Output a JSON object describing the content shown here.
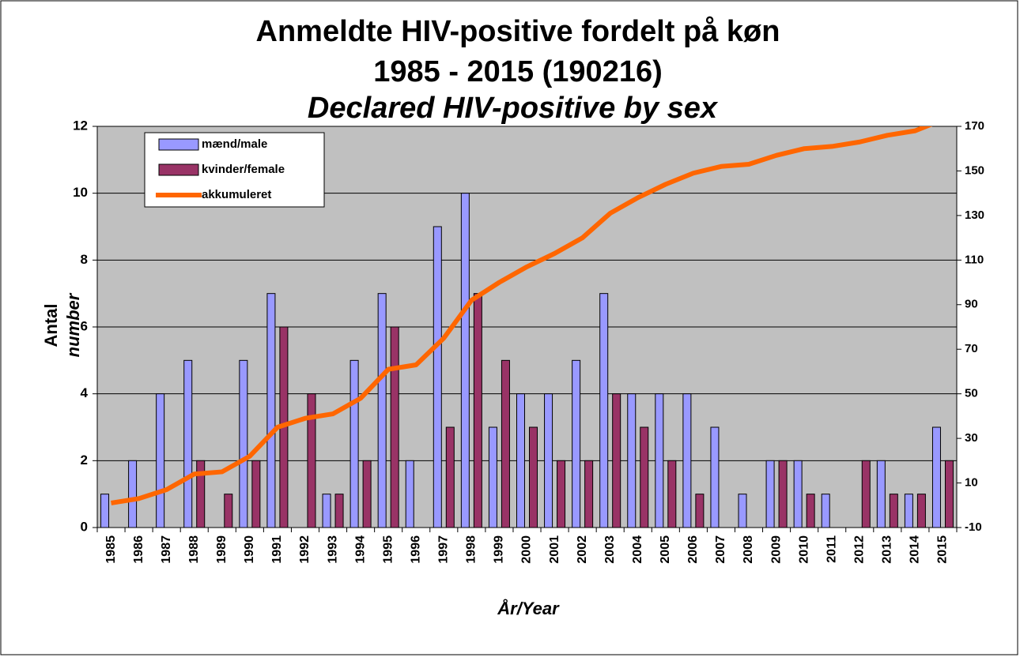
{
  "chart_data": {
    "type": "bar",
    "title": "Anmeldte HIV-positive fordelt på køn",
    "subtitle": "1985 - 2015 (190216)",
    "title_en": "Declared HIV-positive by sex",
    "y_label": "Antal",
    "y_label_en": "number",
    "x_label": "År/Year",
    "categories": [
      "1985",
      "1986",
      "1987",
      "1988",
      "1989",
      "1990",
      "1991",
      "1992",
      "1993",
      "1994",
      "1995",
      "1996",
      "1997",
      "1998",
      "1999",
      "2000",
      "2001",
      "2002",
      "2003",
      "2004",
      "2005",
      "2006",
      "2007",
      "2008",
      "2009",
      "2010",
      "2011",
      "2012",
      "2013",
      "2014",
      "2015"
    ],
    "series": [
      {
        "name": "mænd/male",
        "color": "#9999ff",
        "type": "bar",
        "values": [
          1,
          2,
          4,
          5,
          0,
          5,
          7,
          0,
          1,
          5,
          7,
          2,
          9,
          10,
          3,
          4,
          4,
          5,
          7,
          4,
          4,
          4,
          3,
          1,
          2,
          2,
          1,
          0,
          2,
          1,
          3
        ]
      },
      {
        "name": "kvinder/female",
        "color": "#993366",
        "type": "bar",
        "values": [
          0,
          0,
          0,
          2,
          1,
          2,
          6,
          4,
          1,
          2,
          6,
          0,
          3,
          7,
          5,
          3,
          2,
          2,
          4,
          3,
          2,
          1,
          0,
          0,
          2,
          1,
          0,
          2,
          1,
          1,
          2
        ]
      },
      {
        "name": "akkumuleret",
        "color": "#ff6600",
        "type": "line",
        "axis": "y2",
        "values": [
          1,
          3,
          7,
          14,
          15,
          22,
          35,
          39,
          41,
          48,
          61,
          63,
          75,
          92,
          100,
          107,
          113,
          120,
          131,
          138,
          144,
          149,
          152,
          153,
          157,
          160,
          161,
          163,
          166,
          168,
          173
        ]
      }
    ],
    "ylim": [
      0,
      12
    ],
    "yticks": [
      0,
      2,
      4,
      6,
      8,
      10,
      12
    ],
    "y2lim": [
      -10,
      170
    ],
    "y2ticks": [
      -10,
      10,
      30,
      50,
      70,
      90,
      110,
      130,
      150,
      170
    ],
    "grid": true,
    "legend": "top-left"
  }
}
